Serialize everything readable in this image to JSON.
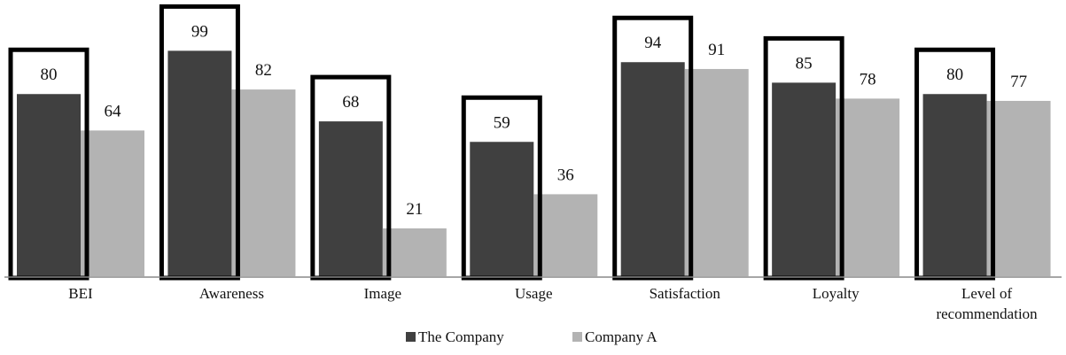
{
  "chart_data": {
    "type": "bar",
    "categories": [
      "BEI",
      "Awareness",
      "Image",
      "Usage",
      "Satisfaction",
      "Loyalty",
      "Level of recommendation"
    ],
    "category_lines": [
      [
        "BEI"
      ],
      [
        "Awareness"
      ],
      [
        "Image"
      ],
      [
        "Usage"
      ],
      [
        "Satisfaction"
      ],
      [
        "Loyalty"
      ],
      [
        "Level of",
        "recommendation"
      ]
    ],
    "series": [
      {
        "name": "The Company",
        "values": [
          80,
          99,
          68,
          59,
          94,
          85,
          80
        ],
        "color": "#404040"
      },
      {
        "name": "Company A",
        "values": [
          64,
          82,
          21,
          36,
          91,
          78,
          77
        ],
        "color": "#b3b3b3"
      }
    ],
    "highlighted_series": "The Company",
    "highlight_color": "#000000",
    "ylim": [
      0,
      100
    ],
    "grid": false,
    "legend_position": "bottom",
    "data_labels": true
  }
}
